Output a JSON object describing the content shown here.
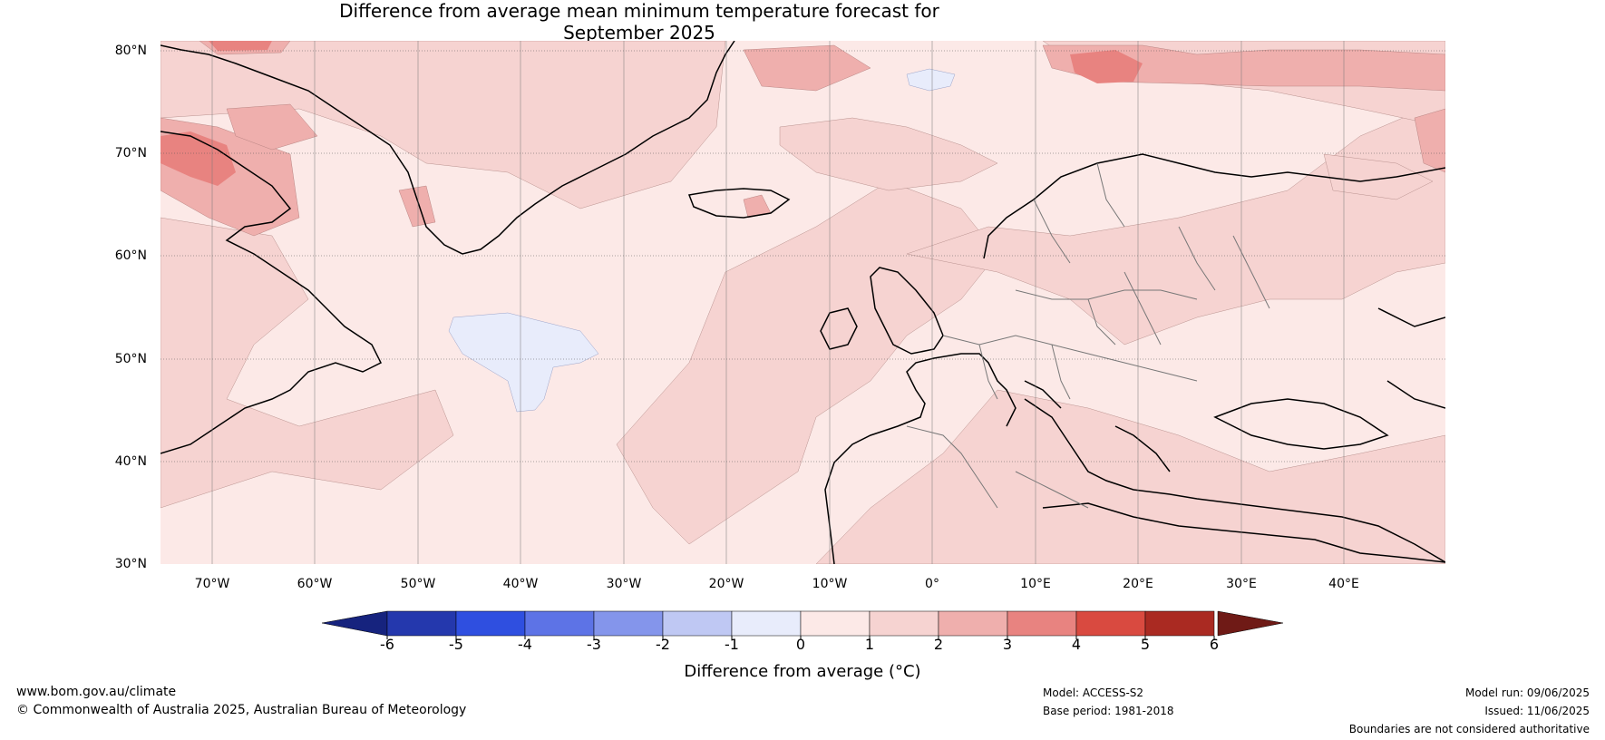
{
  "title_line1": "Difference from average mean minimum temperature forecast for",
  "title_line2": "September 2025",
  "lat_labels": [
    "80°N",
    "70°N",
    "60°N",
    "50°N",
    "40°N",
    "30°N"
  ],
  "lon_labels": [
    "70°W",
    "60°W",
    "50°W",
    "40°W",
    "30°W",
    "20°W",
    "10°W",
    "0°",
    "10°E",
    "20°E",
    "30°E",
    "40°E"
  ],
  "colorbar": {
    "ticks": [
      "-6",
      "-5",
      "-4",
      "-3",
      "-2",
      "-1",
      "0",
      "1",
      "2",
      "3",
      "4",
      "5",
      "6"
    ],
    "colors": [
      "#2438ad",
      "#2f4fe0",
      "#5d73e6",
      "#8495eb",
      "#bfc8f3",
      "#e8ecfb",
      "#fce9e7",
      "#f6d3d1",
      "#efafad",
      "#e88380",
      "#d94a40",
      "#aa2a22"
    ],
    "under_color": "#16237e",
    "over_color": "#6f1a16",
    "label": "Difference from average (°C)"
  },
  "footer": {
    "url": "www.bom.gov.au/climate",
    "copyright": "© Commonwealth of Australia 2025, Australian Bureau of Meteorology",
    "model": "Model: ACCESS-S2",
    "base_period": "Base period: 1981-2018",
    "model_run": "Model run: 09/06/2025",
    "issued": "Issued: 11/06/2025",
    "disclaimer": "Boundaries are not considered authoritative"
  }
}
